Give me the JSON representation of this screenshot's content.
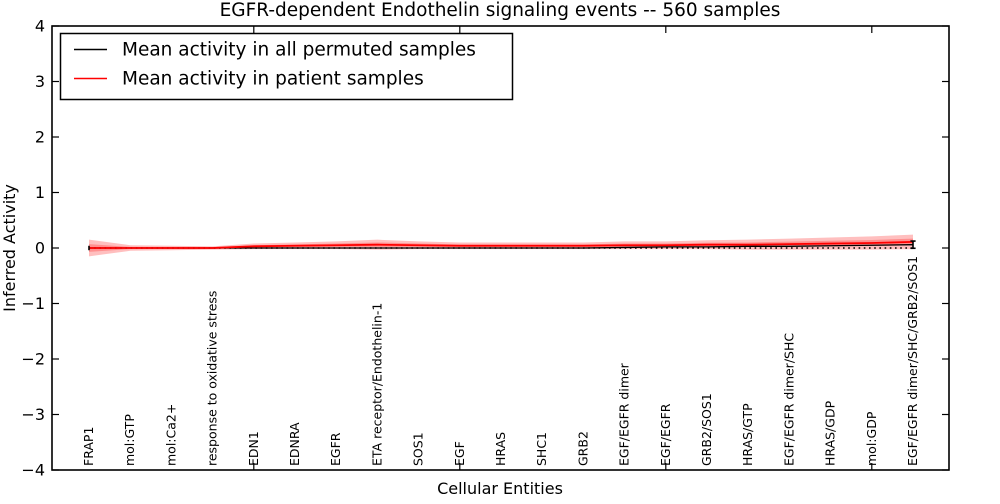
{
  "figure": {
    "background_color": "#ffffff",
    "text_color": "#000000"
  },
  "chart_data": {
    "type": "line",
    "title": "EGFR-dependent Endothelin signaling events -- 560 samples",
    "xlabel": "Cellular Entities",
    "ylabel": "Inferred Activity",
    "ylim": [
      -4,
      4
    ],
    "yticks": [
      {
        "value": 4,
        "label": "4"
      },
      {
        "value": 3,
        "label": "3"
      },
      {
        "value": 2,
        "label": "2"
      },
      {
        "value": 1,
        "label": "1"
      },
      {
        "value": 0,
        "label": "0"
      },
      {
        "value": -1,
        "label": "−1"
      },
      {
        "value": -2,
        "label": "−2"
      },
      {
        "value": -3,
        "label": "−3"
      },
      {
        "value": -4,
        "label": "−4"
      }
    ],
    "grid": false,
    "legend_position": "upper left",
    "reference_line": {
      "y": 0,
      "style": "dotted",
      "color": "#000000"
    },
    "categories": [
      "FRAP1",
      "mol:GTP",
      "mol:Ca2+",
      "response to oxidative stress",
      "EDN1",
      "EDNRA",
      "EGFR",
      "ETA receptor/Endothelin-1",
      "SOS1",
      "EGF",
      "HRAS",
      "SHC1",
      "GRB2",
      "EGF/EGFR dimer",
      "EGF/EGFR",
      "GRB2/SOS1",
      "HRAS/GTP",
      "EGF/EGFR dimer/SHC",
      "HRAS/GDP",
      "mol:GDP",
      "EGF/EGFR dimer/SHC/GRB2/SOS1"
    ],
    "series": [
      {
        "name": "Mean activity in all permuted samples",
        "color": "#000000",
        "line_style": "solid",
        "end_caps": true,
        "values": [
          0,
          0,
          0,
          0,
          0,
          0,
          0,
          0,
          0,
          0,
          0,
          0,
          0,
          0.01,
          0.02,
          0.02,
          0.03,
          0.03,
          0.04,
          0.05,
          0.06
        ]
      },
      {
        "name": "Mean activity in patient samples",
        "color": "#ff0000",
        "line_style": "solid",
        "values": [
          0,
          0,
          0,
          0,
          0.03,
          0.04,
          0.05,
          0.06,
          0.05,
          0.04,
          0.04,
          0.04,
          0.04,
          0.05,
          0.05,
          0.06,
          0.06,
          0.07,
          0.08,
          0.09,
          0.11
        ],
        "band_color": "#ff0000",
        "band_opacity": 0.25,
        "band_outer_half_width": [
          0.15,
          0.05,
          0.04,
          0.03,
          0.05,
          0.06,
          0.07,
          0.09,
          0.07,
          0.06,
          0.06,
          0.06,
          0.06,
          0.07,
          0.07,
          0.08,
          0.09,
          0.1,
          0.11,
          0.12,
          0.13
        ],
        "band_inner_half_width": [
          0.07,
          0.02,
          0.015,
          0.015,
          0.02,
          0.025,
          0.03,
          0.04,
          0.03,
          0.025,
          0.025,
          0.025,
          0.025,
          0.03,
          0.03,
          0.035,
          0.04,
          0.045,
          0.05,
          0.055,
          0.06
        ]
      }
    ]
  }
}
